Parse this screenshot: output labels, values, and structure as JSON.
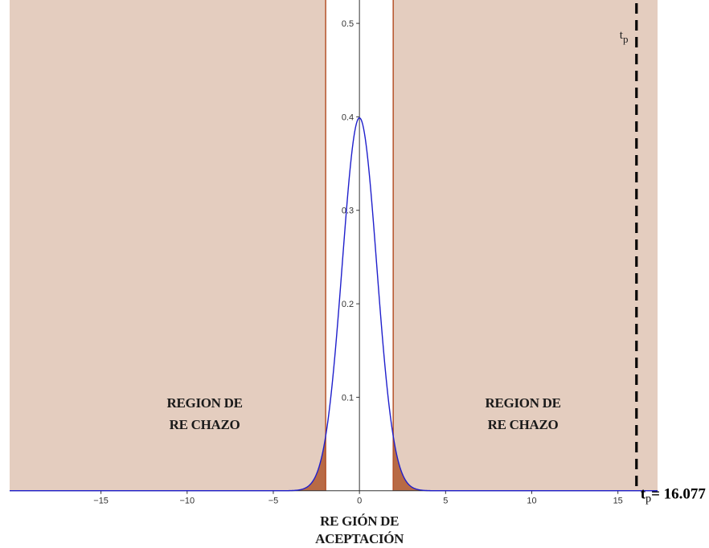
{
  "chart_data": {
    "type": "line",
    "series": [
      {
        "function": "standard normal density",
        "color": "#1f1fcc"
      }
    ],
    "xlim": [
      -20.3,
      17.3
    ],
    "ylim": [
      -0.02,
      0.525
    ],
    "x_ticks": [
      -15,
      -10,
      -5,
      0,
      5,
      10,
      15
    ],
    "x_tick_labels": [
      "−15",
      "−10",
      "−5",
      "0",
      "5",
      "10",
      "15"
    ],
    "y_ticks": [
      0.1,
      0.2,
      0.3,
      0.4,
      0.5
    ],
    "y_tick_labels": [
      "0.1",
      "0.2",
      "0.3",
      "0.4",
      "0.5"
    ],
    "critical_values": [
      -1.96,
      1.96
    ],
    "test_statistic": 16.077,
    "region_color": "#e4cdbf",
    "tail_color": "#b86a45",
    "critical_line_color": "#b5532a",
    "annotations": {
      "rejection_left": [
        "REGION DE",
        "RE CHAZO"
      ],
      "rejection_right": [
        "REGION DE",
        "RE CHAZO"
      ],
      "acceptance": [
        "RE GIÓN DE",
        "ACEPTACIÓN"
      ],
      "tp_marker_t": "t",
      "tp_marker_sub": "p",
      "tp_value_t": "t",
      "tp_value_sub": "p",
      "tp_value": "= 16.077"
    }
  }
}
